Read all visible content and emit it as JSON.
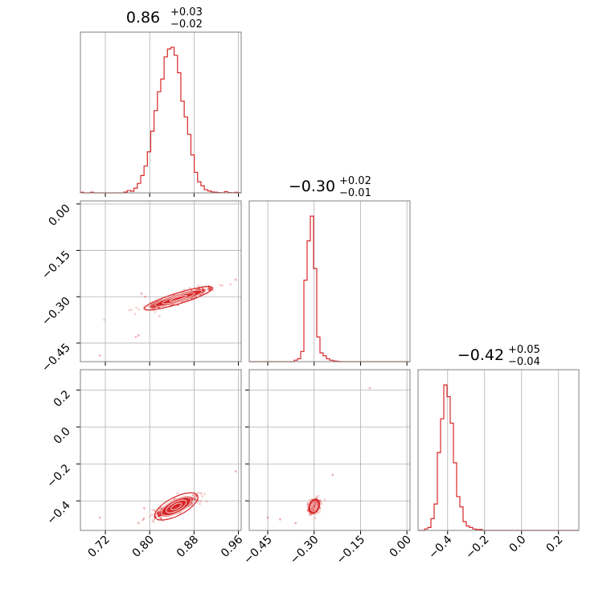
{
  "chart_data": {
    "type": "scatter",
    "subtype": "corner",
    "title": "",
    "grid": true,
    "colors": {
      "accent": "#d62728",
      "grid": "#b0b0b0",
      "frame": "#808080"
    },
    "parameters": [
      {
        "index": 0,
        "title": {
          "median": "0.86",
          "plus": "+0.03",
          "minus": "−0.02"
        },
        "range": [
          0.675,
          0.965
        ],
        "ticks": [
          0.72,
          0.8,
          0.88,
          0.96
        ],
        "tick_labels": [
          "0.72",
          "0.80",
          "0.88",
          "0.96"
        ],
        "histogram": {
          "edges_start": 0.675,
          "bin_width": 0.00604,
          "counts": [
            0.004,
            0,
            0,
            0.004,
            0,
            0,
            0,
            0,
            0,
            0,
            0,
            0,
            0,
            0.005,
            0.015,
            0.01,
            0.03,
            0.06,
            0.11,
            0.17,
            0.26,
            0.39,
            0.52,
            0.64,
            0.72,
            0.86,
            0.91,
            0.92,
            0.87,
            0.76,
            0.58,
            0.48,
            0.37,
            0.24,
            0.13,
            0.07,
            0.045,
            0.02,
            0.012,
            0.006,
            0.004,
            0.002,
            0.001,
            0.008,
            0.002,
            0.001,
            0.003,
            0.001
          ]
        }
      },
      {
        "index": 1,
        "title": {
          "median": "−0.30",
          "plus": "+0.02",
          "minus": "−0.01"
        },
        "range": [
          -0.51,
          0.01
        ],
        "ticks": [
          -0.45,
          -0.3,
          -0.15,
          0.0
        ],
        "tick_labels": [
          "−0.45",
          "−0.30",
          "−0.15",
          "0.00"
        ],
        "histogram": {
          "edges_start": -0.51,
          "bin_width": 0.0104,
          "counts": [
            0,
            0,
            0,
            0,
            0,
            0,
            0,
            0,
            0,
            0,
            0,
            0,
            0,
            0,
            0.01,
            0.02,
            0.07,
            0.56,
            0.83,
            1.0,
            0.64,
            0.17,
            0.06,
            0.04,
            0.02,
            0.01,
            0.005,
            0.003,
            0,
            0,
            0,
            0,
            0,
            0,
            0,
            0,
            0,
            0,
            0,
            0,
            0,
            0,
            0,
            0,
            0,
            0,
            0,
            0,
            0,
            0
          ]
        }
      },
      {
        "index": 2,
        "title": {
          "median": "−0.42",
          "plus": "+0.05",
          "minus": "−0.04"
        },
        "range": [
          -0.56,
          0.31
        ],
        "ticks": [
          -0.4,
          -0.2,
          0.0,
          0.2
        ],
        "tick_labels": [
          "−0.4",
          "−0.2",
          "0.0",
          "0.2"
        ],
        "histogram": {
          "edges_start": -0.56,
          "bin_width": 0.0174,
          "counts": [
            0,
            0,
            0.01,
            0.02,
            0.08,
            0.18,
            0.53,
            0.76,
            0.99,
            0.91,
            0.73,
            0.46,
            0.23,
            0.16,
            0.06,
            0.03,
            0.02,
            0.01,
            0.006,
            0.006,
            0,
            0,
            0,
            0,
            0,
            0,
            0,
            0,
            0,
            0,
            0,
            0,
            0,
            0,
            0,
            0,
            0,
            0,
            0,
            0,
            0,
            0,
            0,
            0,
            0,
            0,
            0,
            0,
            0,
            0
          ]
        }
      }
    ],
    "pairs": [
      {
        "x": 0,
        "y": 1,
        "center": [
          0.852,
          -0.305
        ],
        "slope": 0.55,
        "spread_major": 0.022,
        "spread_minor": 0.0045,
        "outliers": [
          [
            0.792,
            -0.3
          ],
          [
            0.785,
            -0.29
          ],
          [
            0.78,
            -0.425
          ],
          [
            0.775,
            -0.43
          ],
          [
            0.71,
            -0.49
          ],
          [
            0.955,
            -0.245
          ]
        ]
      },
      {
        "x": 0,
        "y": 2,
        "center": [
          0.848,
          -0.43
        ],
        "slope": 1.55,
        "spread_major": 0.022,
        "spread_minor": 0.006,
        "outliers": [
          [
            0.71,
            -0.49
          ],
          [
            0.79,
            -0.44
          ],
          [
            0.955,
            -0.24
          ],
          [
            0.78,
            -0.52
          ]
        ]
      },
      {
        "x": 1,
        "y": 2,
        "center": [
          -0.3,
          -0.43
        ],
        "slope": 4.5,
        "spread_major": 0.012,
        "spread_minor": 0.005,
        "outliers": [
          [
            -0.12,
            0.21
          ],
          [
            -0.36,
            -0.52
          ],
          [
            -0.41,
            -0.5
          ],
          [
            -0.45,
            -0.49
          ],
          [
            -0.24,
            -0.26
          ]
        ]
      }
    ]
  }
}
